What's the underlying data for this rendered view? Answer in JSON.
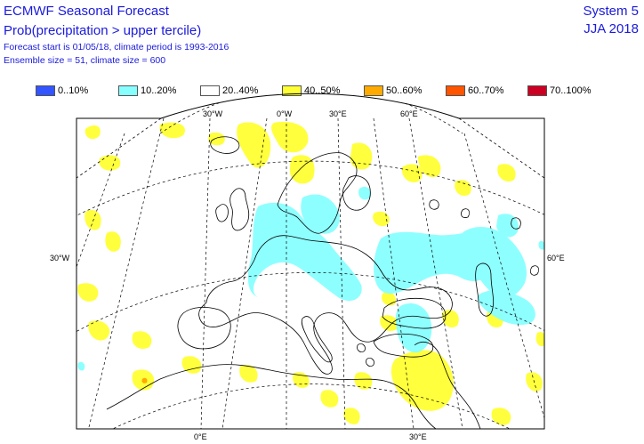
{
  "header": {
    "title": "ECMWF Seasonal Forecast",
    "subtitle": "Prob(precipitation > upper tercile)",
    "meta_line1": "Forecast start is 01/05/18, climate period is 1993-2016",
    "meta_line2": "Ensemble size = 51, climate size = 600",
    "system": "System 5",
    "season": "JJA 2018"
  },
  "legend": [
    {
      "label": "0..10%",
      "color": "#3355ff"
    },
    {
      "label": "10..20%",
      "color": "#88ffff"
    },
    {
      "label": "20..40%",
      "color": "#ffffff"
    },
    {
      "label": "40..50%",
      "color": "#ffff33"
    },
    {
      "label": "50..60%",
      "color": "#ffaa00"
    },
    {
      "label": "60..70%",
      "color": "#ff5500"
    },
    {
      "label": "70..100%",
      "color": "#cc0022"
    }
  ],
  "map_labels": {
    "top": [
      "30°W",
      "0°W",
      "30°E",
      "60°E"
    ],
    "left": "30°W",
    "right": "60°E",
    "bottom": [
      "0°E",
      "30°E"
    ]
  },
  "colors": {
    "header_text": "#1a1adc",
    "wet_fill": "#ffff33",
    "dry_fill": "#88ffff",
    "coast": "#000000",
    "grid": "#000000"
  }
}
